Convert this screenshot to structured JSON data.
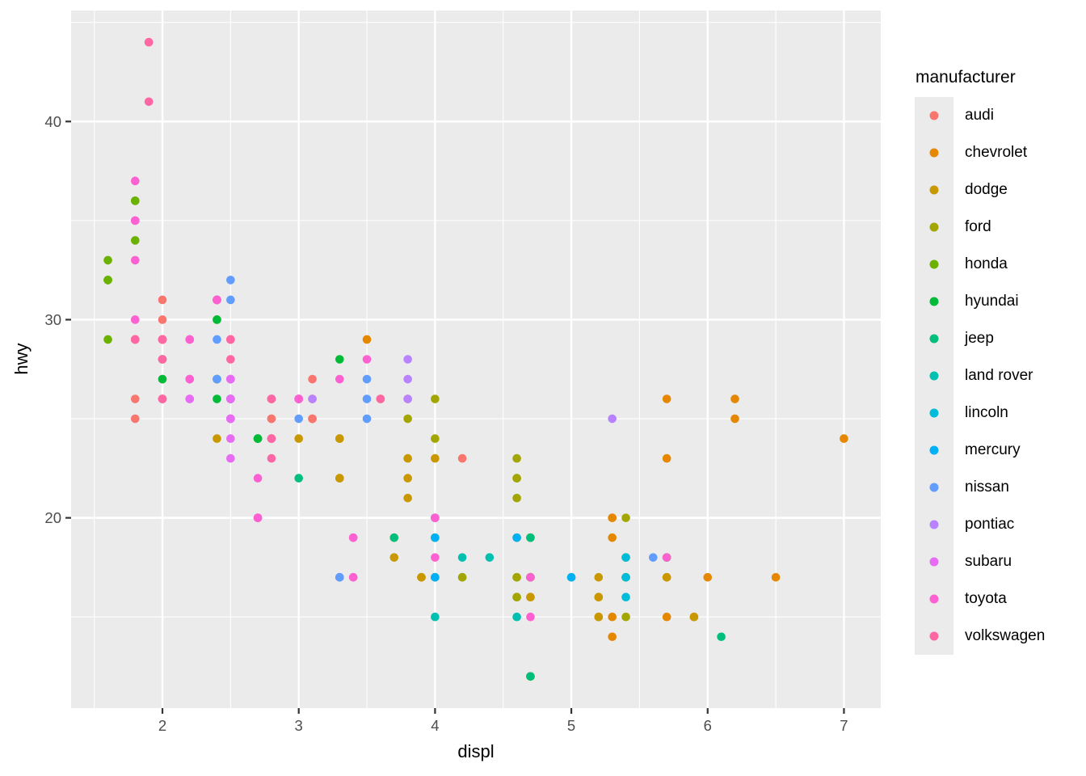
{
  "chart_data": {
    "type": "scatter",
    "title": "",
    "xlabel": "displ",
    "ylabel": "hwy",
    "legend_title": "manufacturer",
    "legend_position": "right",
    "grid": "white major and minor gridlines on gray panel",
    "xlim": [
      1.33,
      7.27
    ],
    "ylim": [
      10.4,
      45.6
    ],
    "x_ticks": [
      2,
      3,
      4,
      5,
      6,
      7
    ],
    "y_ticks": [
      20,
      30,
      40
    ],
    "x_minor_ticks": [
      1.5,
      2.5,
      3.5,
      4.5,
      5.5,
      6.5
    ],
    "y_minor_ticks": [
      15,
      25,
      35,
      45
    ],
    "colors": {
      "panel_bg": "#EBEBEB",
      "gridline": "#FFFFFF",
      "tick_mark": "#333333",
      "tick_label": "#4D4D4D",
      "text": "#000000",
      "legend_key_bg": "#EBEBEB"
    },
    "series": [
      {
        "name": "audi",
        "color": "#F8766D",
        "points": [
          [
            1.8,
            29
          ],
          [
            1.8,
            29
          ],
          [
            2.0,
            31
          ],
          [
            2.0,
            30
          ],
          [
            2.8,
            26
          ],
          [
            2.8,
            26
          ],
          [
            3.1,
            27
          ],
          [
            1.8,
            26
          ],
          [
            1.8,
            25
          ],
          [
            2.0,
            28
          ],
          [
            2.0,
            27
          ],
          [
            2.8,
            25
          ],
          [
            2.8,
            25
          ],
          [
            3.1,
            25
          ],
          [
            3.1,
            25
          ],
          [
            2.8,
            24
          ],
          [
            3.1,
            25
          ],
          [
            4.2,
            23
          ]
        ]
      },
      {
        "name": "chevrolet",
        "color": "#E58700",
        "points": [
          [
            5.3,
            20
          ],
          [
            5.3,
            15
          ],
          [
            5.3,
            20
          ],
          [
            5.7,
            17
          ],
          [
            6.0,
            17
          ],
          [
            5.7,
            26
          ],
          [
            5.7,
            23
          ],
          [
            6.2,
            26
          ],
          [
            6.2,
            25
          ],
          [
            7.0,
            24
          ],
          [
            5.3,
            19
          ],
          [
            5.3,
            14
          ],
          [
            5.7,
            15
          ],
          [
            6.5,
            17
          ],
          [
            2.4,
            27
          ],
          [
            2.4,
            30
          ],
          [
            3.1,
            26
          ],
          [
            3.5,
            29
          ],
          [
            3.6,
            26
          ]
        ]
      },
      {
        "name": "dodge",
        "color": "#C99800",
        "points": [
          [
            2.4,
            24
          ],
          [
            3.0,
            24
          ],
          [
            3.3,
            22
          ],
          [
            3.3,
            22
          ],
          [
            3.3,
            24
          ],
          [
            3.3,
            24
          ],
          [
            3.3,
            17
          ],
          [
            3.8,
            22
          ],
          [
            3.8,
            21
          ],
          [
            3.8,
            23
          ],
          [
            4.0,
            23
          ],
          [
            3.7,
            19
          ],
          [
            3.7,
            18
          ],
          [
            3.9,
            17
          ],
          [
            3.9,
            17
          ],
          [
            4.7,
            19
          ],
          [
            4.7,
            19
          ],
          [
            4.7,
            12
          ],
          [
            5.2,
            17
          ],
          [
            5.2,
            15
          ],
          [
            3.9,
            17
          ],
          [
            4.7,
            17
          ],
          [
            4.7,
            12
          ],
          [
            4.7,
            17
          ],
          [
            5.2,
            16
          ],
          [
            5.7,
            18
          ],
          [
            5.9,
            15
          ],
          [
            4.7,
            16
          ],
          [
            4.7,
            12
          ],
          [
            4.7,
            17
          ],
          [
            4.7,
            17
          ],
          [
            4.7,
            16
          ],
          [
            4.7,
            12
          ],
          [
            5.2,
            15
          ],
          [
            5.2,
            16
          ],
          [
            5.7,
            17
          ],
          [
            5.9,
            15
          ]
        ]
      },
      {
        "name": "ford",
        "color": "#A3A500",
        "points": [
          [
            4.6,
            17
          ],
          [
            5.4,
            17
          ],
          [
            5.4,
            18
          ],
          [
            4.0,
            17
          ],
          [
            4.0,
            19
          ],
          [
            4.0,
            17
          ],
          [
            4.0,
            19
          ],
          [
            4.6,
            19
          ],
          [
            5.0,
            17
          ],
          [
            4.2,
            17
          ],
          [
            4.2,
            17
          ],
          [
            4.6,
            16
          ],
          [
            4.6,
            16
          ],
          [
            4.6,
            17
          ],
          [
            5.4,
            15
          ],
          [
            5.4,
            17
          ],
          [
            3.8,
            26
          ],
          [
            3.8,
            25
          ],
          [
            4.0,
            26
          ],
          [
            4.0,
            24
          ],
          [
            4.6,
            21
          ],
          [
            4.6,
            22
          ],
          [
            4.6,
            23
          ],
          [
            4.6,
            22
          ],
          [
            5.4,
            20
          ]
        ]
      },
      {
        "name": "honda",
        "color": "#6BB100",
        "points": [
          [
            1.6,
            33
          ],
          [
            1.6,
            32
          ],
          [
            1.6,
            32
          ],
          [
            1.6,
            29
          ],
          [
            1.6,
            32
          ],
          [
            1.8,
            34
          ],
          [
            1.8,
            36
          ],
          [
            1.8,
            36
          ],
          [
            2.0,
            29
          ]
        ]
      },
      {
        "name": "hyundai",
        "color": "#00BA38",
        "points": [
          [
            2.4,
            26
          ],
          [
            2.4,
            27
          ],
          [
            2.4,
            30
          ],
          [
            2.4,
            31
          ],
          [
            2.5,
            26
          ],
          [
            2.5,
            26
          ],
          [
            3.3,
            28
          ],
          [
            2.0,
            26
          ],
          [
            2.0,
            29
          ],
          [
            2.0,
            28
          ],
          [
            2.0,
            27
          ],
          [
            2.7,
            24
          ],
          [
            2.7,
            24
          ],
          [
            2.7,
            24
          ]
        ]
      },
      {
        "name": "jeep",
        "color": "#00BF7D",
        "points": [
          [
            3.0,
            22
          ],
          [
            3.7,
            19
          ],
          [
            4.0,
            20
          ],
          [
            4.7,
            17
          ],
          [
            4.7,
            12
          ],
          [
            4.7,
            19
          ],
          [
            5.7,
            18
          ],
          [
            6.1,
            14
          ]
        ]
      },
      {
        "name": "land rover",
        "color": "#00C0AF",
        "points": [
          [
            4.0,
            15
          ],
          [
            4.2,
            18
          ],
          [
            4.4,
            18
          ],
          [
            4.6,
            15
          ]
        ]
      },
      {
        "name": "lincoln",
        "color": "#00BCD8",
        "points": [
          [
            5.4,
            17
          ],
          [
            5.4,
            16
          ],
          [
            5.4,
            18
          ]
        ]
      },
      {
        "name": "mercury",
        "color": "#00B0F6",
        "points": [
          [
            4.0,
            17
          ],
          [
            4.0,
            19
          ],
          [
            4.6,
            19
          ],
          [
            5.0,
            17
          ]
        ]
      },
      {
        "name": "nissan",
        "color": "#619CFF",
        "points": [
          [
            2.4,
            29
          ],
          [
            2.4,
            27
          ],
          [
            2.5,
            31
          ],
          [
            2.5,
            32
          ],
          [
            3.5,
            27
          ],
          [
            3.5,
            26
          ],
          [
            3.0,
            26
          ],
          [
            3.0,
            25
          ],
          [
            3.5,
            25
          ],
          [
            3.3,
            17
          ],
          [
            3.3,
            17
          ],
          [
            4.0,
            20
          ],
          [
            5.6,
            18
          ]
        ]
      },
      {
        "name": "pontiac",
        "color": "#B983FF",
        "points": [
          [
            3.1,
            26
          ],
          [
            3.8,
            26
          ],
          [
            3.8,
            27
          ],
          [
            3.8,
            28
          ],
          [
            5.3,
            25
          ]
        ]
      },
      {
        "name": "subaru",
        "color": "#E76BF3",
        "points": [
          [
            2.5,
            25
          ],
          [
            2.5,
            24
          ],
          [
            2.5,
            27
          ],
          [
            2.5,
            25
          ],
          [
            2.5,
            26
          ],
          [
            2.5,
            23
          ],
          [
            2.2,
            26
          ],
          [
            2.2,
            26
          ],
          [
            2.5,
            26
          ],
          [
            2.5,
            26
          ],
          [
            2.5,
            25
          ],
          [
            2.5,
            27
          ],
          [
            2.5,
            25
          ],
          [
            2.5,
            27
          ]
        ]
      },
      {
        "name": "toyota",
        "color": "#FD61D1",
        "points": [
          [
            2.7,
            20
          ],
          [
            2.7,
            20
          ],
          [
            3.4,
            19
          ],
          [
            3.4,
            17
          ],
          [
            4.0,
            20
          ],
          [
            4.7,
            17
          ],
          [
            2.2,
            29
          ],
          [
            2.2,
            27
          ],
          [
            2.4,
            31
          ],
          [
            2.4,
            31
          ],
          [
            3.0,
            26
          ],
          [
            3.0,
            26
          ],
          [
            3.5,
            28
          ],
          [
            2.2,
            27
          ],
          [
            2.2,
            29
          ],
          [
            2.4,
            31
          ],
          [
            2.4,
            31
          ],
          [
            3.0,
            26
          ],
          [
            3.0,
            26
          ],
          [
            3.3,
            27
          ],
          [
            1.8,
            30
          ],
          [
            1.8,
            33
          ],
          [
            1.8,
            35
          ],
          [
            1.8,
            37
          ],
          [
            1.8,
            35
          ],
          [
            4.7,
            15
          ],
          [
            5.7,
            18
          ],
          [
            2.7,
            20
          ],
          [
            2.7,
            20
          ],
          [
            2.7,
            22
          ],
          [
            3.4,
            17
          ],
          [
            3.4,
            19
          ],
          [
            4.0,
            18
          ],
          [
            4.0,
            20
          ]
        ]
      },
      {
        "name": "volkswagen",
        "color": "#FF67A4",
        "points": [
          [
            2.0,
            29
          ],
          [
            2.0,
            29
          ],
          [
            2.0,
            26
          ],
          [
            2.0,
            29
          ],
          [
            2.8,
            24
          ],
          [
            1.9,
            44
          ],
          [
            2.0,
            29
          ],
          [
            2.0,
            26
          ],
          [
            2.0,
            29
          ],
          [
            2.0,
            29
          ],
          [
            2.5,
            29
          ],
          [
            2.5,
            29
          ],
          [
            2.8,
            24
          ],
          [
            2.8,
            23
          ],
          [
            1.9,
            44
          ],
          [
            1.9,
            41
          ],
          [
            2.0,
            29
          ],
          [
            2.0,
            26
          ],
          [
            2.5,
            28
          ],
          [
            2.5,
            29
          ],
          [
            1.8,
            29
          ],
          [
            1.8,
            29
          ],
          [
            2.0,
            28
          ],
          [
            2.0,
            29
          ],
          [
            2.8,
            26
          ],
          [
            2.8,
            26
          ],
          [
            3.6,
            26
          ]
        ]
      }
    ]
  }
}
